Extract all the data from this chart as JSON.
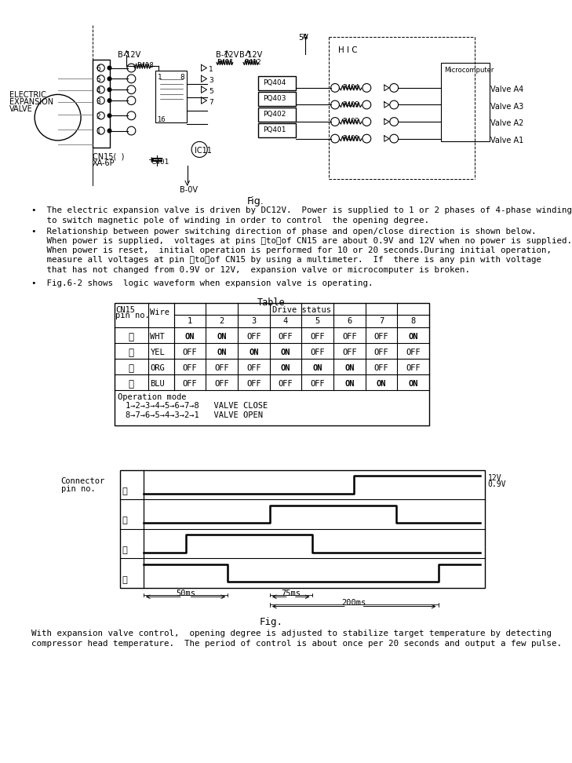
{
  "bg_color": "#ffffff",
  "page_width": 8.93,
  "page_height": 12.63,
  "bullet1_line1": "•  The electric expansion valve is driven by DC12V.  Power is supplied to 1 or 2 phases of 4-phase winding",
  "bullet1_line2": "   to switch magnetic pole of winding in order to control  the opening degree.",
  "bullet2_line1": "•  Relationship between power switching direction of phase and open/close direction is shown below.",
  "bullet2_line2": "   When power is supplied,  voltages at pins ⓓtoⓐof CN15 are about 0.9V and 12V when no power is supplied.",
  "bullet2_line3": "   When power is reset,  initial operation is performed for 10 or 20 seconds.During initial operation,",
  "bullet2_line4": "   measure all voltages at pin ⓓtoⓐof CN15 by using a multimeter.  If  there is any pin with voltage",
  "bullet2_line5": "   that has not changed from 0.9V or 12V,  expansion valve or microcomputer is broken.",
  "bullet3_line1": "•  Fig.6-2 shows  logic waveform when expansion valve is operating.",
  "table_title": "Table",
  "table_rows": [
    [
      "①",
      "WHT",
      "ON",
      "ON",
      "OFF",
      "OFF",
      "OFF",
      "OFF",
      "OFF",
      "ON"
    ],
    [
      "②",
      "YEL",
      "OFF",
      "ON",
      "ON",
      "ON",
      "OFF",
      "OFF",
      "OFF",
      "OFF"
    ],
    [
      "③",
      "ORG",
      "OFF",
      "OFF",
      "OFF",
      "ON",
      "ON",
      "ON",
      "OFF",
      "OFF"
    ],
    [
      "④",
      "BLU",
      "OFF",
      "OFF",
      "OFF",
      "OFF",
      "OFF",
      "ON",
      "ON",
      "ON"
    ]
  ],
  "op_mode_title": "Operation mode",
  "op_mode_line1": "1→2→3→4→5→6→7→8   VALVE CLOSE",
  "op_mode_line2": "8→7→6→5→4→3→2→1   VALVE OPEN",
  "waveform_12v": "12V",
  "waveform_09v": "0.9V",
  "timing_50ms": "50ms",
  "timing_75ms": "75ms",
  "timing_200ms": "200ms",
  "fig_label": "Fig.",
  "footer_line1": "With expansion valve control,  opening degree is adjusted to stabilize target temperature by detecting",
  "footer_line2": "compressor head temperature.  The period of control is about once per 20 seconds and output a few pulse."
}
